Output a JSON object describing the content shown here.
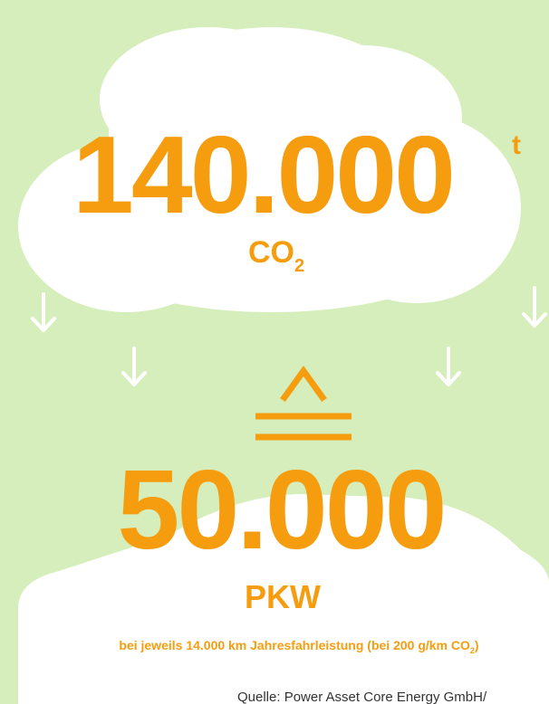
{
  "headline": {
    "value": "140.000",
    "unit": "t",
    "substance": "CO",
    "substance_subscript": "2"
  },
  "equivalent": {
    "value": "50.000",
    "label": "PKW",
    "note": "bei jeweils 14.000 km Jahresfahrleistung (bei 200 g/km CO",
    "note_subscript": "2",
    "note_end": ")"
  },
  "source": "Quelle: Power Asset Core Energy GmbH/"
}
